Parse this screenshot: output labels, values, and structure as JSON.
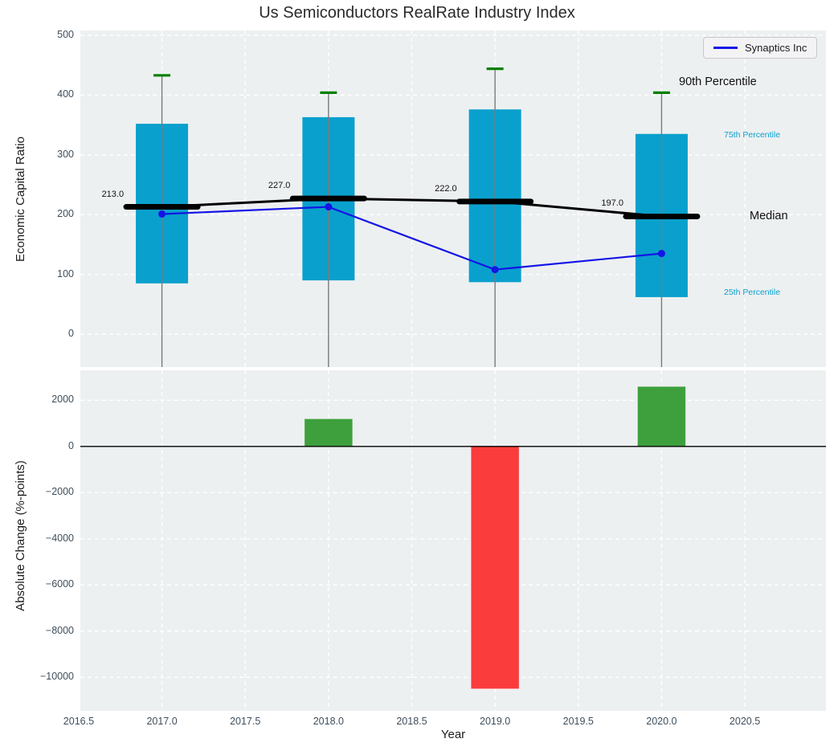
{
  "title": "Us Semiconductors RealRate Industry Index",
  "legend": {
    "label": "Synaptics Inc"
  },
  "annotations": {
    "p90": "90th Percentile",
    "p75": "75th Percentile",
    "median": "Median",
    "p25": "25th Percentile"
  },
  "colors": {
    "panel_bg": "#edf0f1",
    "grid_white": "#ffffff",
    "box": "#0aa0cd",
    "cap_green": "#008000",
    "median_black": "#000000",
    "synaptics_blue": "#1414e6",
    "bar_green": "#3da03d",
    "bar_red": "#fa3c3c",
    "whisker_gray": "#7a7a7a",
    "tick_color": "#3e4e5c"
  },
  "chart_data": [
    {
      "type": "boxplot+line",
      "title": "Us Semiconductors RealRate Industry Index",
      "ylabel": "Economic Capital Ratio",
      "x": [
        2017,
        2018,
        2019,
        2020
      ],
      "series": [
        {
          "name": "25th Percentile",
          "values": [
            85,
            90,
            87,
            62
          ]
        },
        {
          "name": "75th Percentile",
          "values": [
            352,
            363,
            376,
            335
          ]
        },
        {
          "name": "90th Percentile",
          "values": [
            433,
            404,
            444,
            404
          ]
        },
        {
          "name": "Median",
          "values": [
            213,
            227,
            222,
            197
          ]
        },
        {
          "name": "Synaptics Inc",
          "values": [
            201,
            213,
            108,
            135
          ]
        }
      ],
      "median_labels": [
        "213.0",
        "227.0",
        "222.0",
        "197.0"
      ],
      "ylim": [
        -55,
        508
      ],
      "yticks": [
        0,
        100,
        200,
        300,
        400,
        500
      ],
      "ytick_labels": [
        "0",
        "100",
        "200",
        "300",
        "400",
        "500"
      ],
      "grid": true,
      "legend_position": "upper right"
    },
    {
      "type": "bar",
      "ylabel": "Absolute Change (%-points)",
      "xlabel": "Year",
      "x": [
        2018,
        2019,
        2020
      ],
      "values": [
        1200,
        -10500,
        2600
      ],
      "bar_colors": [
        "green",
        "red",
        "green"
      ],
      "ylim": [
        -11450,
        3300
      ],
      "yticks": [
        2000,
        0,
        -2000,
        -4000,
        -6000,
        -8000,
        -10000
      ],
      "ytick_labels": [
        "2000",
        "0",
        "−2000",
        "−4000",
        "−6000",
        "−8000",
        "−10000"
      ],
      "xticks": [
        2016.5,
        2017.0,
        2017.5,
        2018.0,
        2018.5,
        2019.0,
        2019.5,
        2020.0,
        2020.5
      ],
      "xtick_labels": [
        "2016.5",
        "2017.0",
        "2017.5",
        "2018.0",
        "2018.5",
        "2019.0",
        "2019.5",
        "2020.0",
        "2020.5"
      ],
      "xlim": [
        2016.51,
        2020.987
      ],
      "grid": true
    }
  ]
}
